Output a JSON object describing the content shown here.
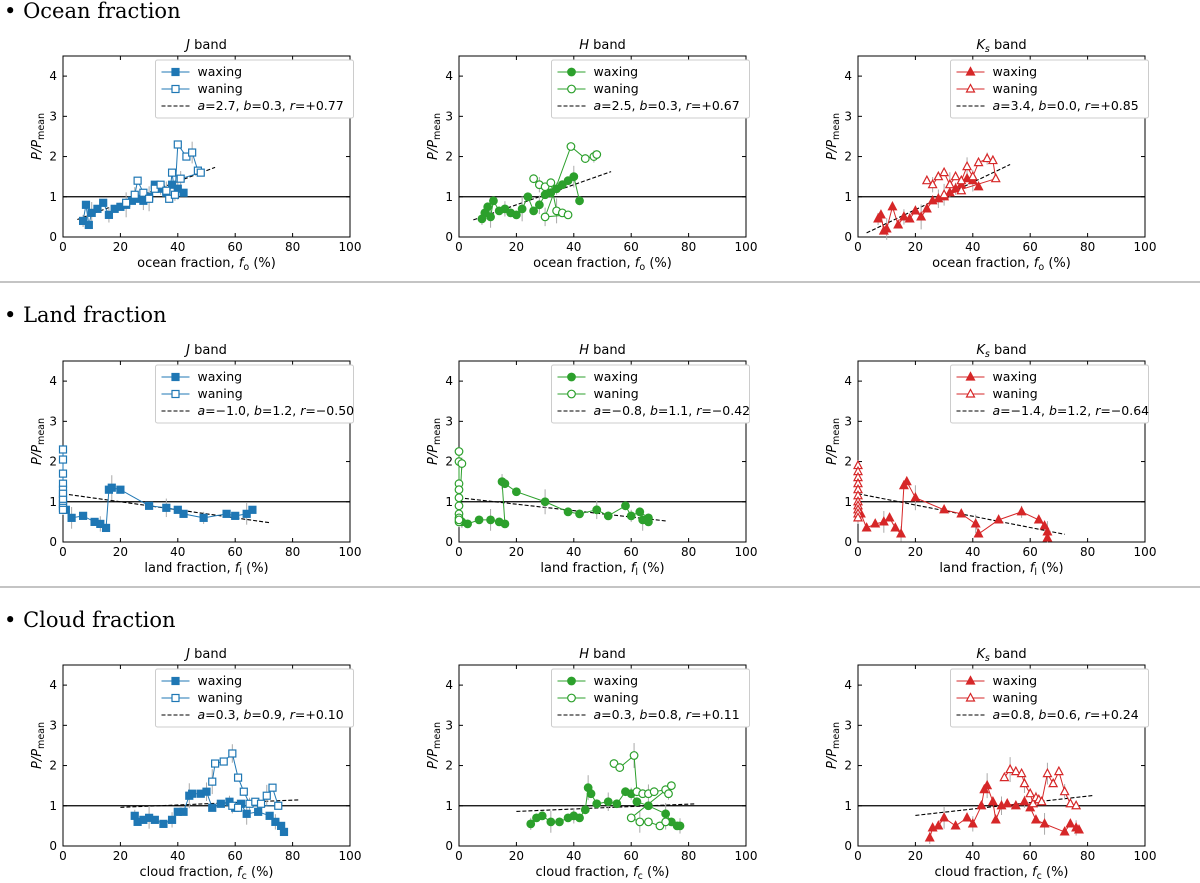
{
  "sections": [
    {
      "title": "Ocean fraction",
      "xlabel": "ocean fraction, f",
      "sub": "o",
      "key": "ocean"
    },
    {
      "title": "Land fraction",
      "xlabel": "land fraction, f",
      "sub": "l",
      "key": "land"
    },
    {
      "title": "Cloud fraction",
      "xlabel": "cloud fraction, f",
      "sub": "c",
      "key": "cloud"
    }
  ],
  "bands": [
    {
      "name": "J",
      "sub": "",
      "title_suffix": " band",
      "color": "#1f77b4",
      "marker": "square"
    },
    {
      "name": "H",
      "sub": "",
      "title_suffix": " band",
      "color": "#2ca02c",
      "marker": "circle"
    },
    {
      "name": "K",
      "sub": "s",
      "title_suffix": " band",
      "color": "#d62728",
      "marker": "triangle"
    }
  ],
  "legend_labels": {
    "waxing": "waxing",
    "waning": "waning"
  },
  "ylabel": "P/P",
  "ylabel_sub": "mean",
  "x_unit": " (%)",
  "x_ticks": [
    "0",
    "20",
    "40",
    "60",
    "80",
    "100"
  ],
  "y_ticks": [
    "0",
    "1",
    "2",
    "3",
    "4"
  ],
  "colors": {
    "J": "#1f77b4",
    "H": "#2ca02c",
    "Ks": "#d62728",
    "axis": "#000000",
    "errorbar": "#aaaaaa",
    "separator": "#888888"
  },
  "chart_data": [
    {
      "section": "ocean",
      "band": "J",
      "type": "scatter",
      "xlim": [
        0,
        100
      ],
      "ylim": [
        0,
        4.5
      ],
      "fit": {
        "a": "2.7",
        "b": "0.3",
        "r": "+0.77",
        "x_range": [
          5,
          53
        ]
      },
      "waxing": [
        [
          7,
          0.4
        ],
        [
          8,
          0.8
        ],
        [
          9,
          0.3
        ],
        [
          10,
          0.6
        ],
        [
          12,
          0.7
        ],
        [
          14,
          0.85
        ],
        [
          16,
          0.55
        ],
        [
          18,
          0.7
        ],
        [
          20,
          0.75
        ],
        [
          22,
          0.8
        ],
        [
          24,
          0.9
        ],
        [
          26,
          0.95
        ],
        [
          28,
          0.9
        ],
        [
          30,
          1.0
        ],
        [
          32,
          1.3
        ],
        [
          34,
          1.2
        ],
        [
          36,
          1.1
        ],
        [
          38,
          1.3
        ],
        [
          40,
          1.2
        ],
        [
          42,
          1.1
        ]
      ],
      "waning": [
        [
          22,
          0.85
        ],
        [
          25,
          1.05
        ],
        [
          26,
          1.4
        ],
        [
          28,
          1.1
        ],
        [
          30,
          0.95
        ],
        [
          32,
          1.2
        ],
        [
          34,
          1.3
        ],
        [
          36,
          1.15
        ],
        [
          37,
          0.95
        ],
        [
          38,
          1.6
        ],
        [
          39,
          1.05
        ],
        [
          40,
          2.3
        ],
        [
          43,
          2.0
        ],
        [
          45,
          2.1
        ],
        [
          47,
          1.65
        ],
        [
          48,
          1.6
        ],
        [
          41,
          1.45
        ]
      ]
    },
    {
      "section": "ocean",
      "band": "H",
      "type": "scatter",
      "xlim": [
        0,
        100
      ],
      "ylim": [
        0,
        4.5
      ],
      "fit": {
        "a": "2.5",
        "b": "0.3",
        "r": "+0.67",
        "x_range": [
          5,
          53
        ]
      },
      "waxing": [
        [
          8,
          0.45
        ],
        [
          9,
          0.6
        ],
        [
          10,
          0.75
        ],
        [
          11,
          0.5
        ],
        [
          12,
          0.9
        ],
        [
          14,
          0.65
        ],
        [
          16,
          0.7
        ],
        [
          18,
          0.6
        ],
        [
          20,
          0.55
        ],
        [
          22,
          0.7
        ],
        [
          24,
          1.0
        ],
        [
          26,
          0.65
        ],
        [
          28,
          0.8
        ],
        [
          30,
          1.05
        ],
        [
          32,
          1.1
        ],
        [
          34,
          1.2
        ],
        [
          36,
          1.3
        ],
        [
          38,
          1.4
        ],
        [
          40,
          1.5
        ],
        [
          42,
          0.9
        ]
      ],
      "waning": [
        [
          26,
          1.45
        ],
        [
          28,
          1.3
        ],
        [
          30,
          1.25
        ],
        [
          32,
          1.35
        ],
        [
          34,
          0.65
        ],
        [
          36,
          0.6
        ],
        [
          38,
          0.55
        ],
        [
          30,
          0.5
        ],
        [
          39,
          2.25
        ],
        [
          44,
          1.95
        ],
        [
          47,
          2.0
        ],
        [
          48,
          2.05
        ]
      ]
    },
    {
      "section": "ocean",
      "band": "Ks",
      "type": "scatter",
      "xlim": [
        0,
        100
      ],
      "ylim": [
        0,
        4.5
      ],
      "fit": {
        "a": "3.4",
        "b": "0.0",
        "r": "+0.85",
        "x_range": [
          3,
          53
        ]
      },
      "waxing": [
        [
          7,
          0.45
        ],
        [
          8,
          0.55
        ],
        [
          9,
          0.15
        ],
        [
          10,
          0.2
        ],
        [
          12,
          0.75
        ],
        [
          14,
          0.3
        ],
        [
          16,
          0.5
        ],
        [
          18,
          0.45
        ],
        [
          20,
          0.65
        ],
        [
          22,
          0.5
        ],
        [
          24,
          0.7
        ],
        [
          26,
          0.9
        ],
        [
          28,
          0.95
        ],
        [
          30,
          1.0
        ],
        [
          32,
          1.1
        ],
        [
          34,
          1.2
        ],
        [
          36,
          1.3
        ],
        [
          38,
          1.45
        ],
        [
          40,
          1.4
        ],
        [
          42,
          1.25
        ]
      ],
      "waning": [
        [
          24,
          1.4
        ],
        [
          26,
          1.3
        ],
        [
          28,
          1.5
        ],
        [
          30,
          1.6
        ],
        [
          32,
          1.3
        ],
        [
          34,
          1.5
        ],
        [
          36,
          1.4
        ],
        [
          38,
          1.75
        ],
        [
          40,
          1.5
        ],
        [
          42,
          1.85
        ],
        [
          45,
          1.95
        ],
        [
          47,
          1.9
        ],
        [
          48,
          1.45
        ],
        [
          30,
          1.05
        ],
        [
          36,
          1.15
        ]
      ]
    },
    {
      "section": "land",
      "band": "J",
      "type": "scatter",
      "xlim": [
        0,
        100
      ],
      "ylim": [
        0,
        4.5
      ],
      "fit": {
        "a": "−1.0",
        "b": "1.2",
        "r": "−0.50",
        "x_range": [
          0,
          72
        ]
      },
      "waxing": [
        [
          0,
          1.1
        ],
        [
          0,
          0.95
        ],
        [
          1,
          0.8
        ],
        [
          3,
          0.6
        ],
        [
          7,
          0.65
        ],
        [
          11,
          0.5
        ],
        [
          13,
          0.45
        ],
        [
          15,
          0.35
        ],
        [
          16,
          1.3
        ],
        [
          17,
          1.35
        ],
        [
          20,
          1.3
        ],
        [
          30,
          0.9
        ],
        [
          36,
          0.85
        ],
        [
          40,
          0.8
        ],
        [
          42,
          0.7
        ],
        [
          49,
          0.6
        ],
        [
          57,
          0.7
        ],
        [
          60,
          0.65
        ],
        [
          64,
          0.7
        ],
        [
          66,
          0.8
        ]
      ],
      "waning": [
        [
          0,
          2.3
        ],
        [
          0,
          2.05
        ],
        [
          0,
          1.7
        ],
        [
          0,
          1.45
        ],
        [
          0,
          1.3
        ],
        [
          0,
          1.2
        ],
        [
          0,
          1.05
        ],
        [
          0,
          0.9
        ],
        [
          0,
          0.85
        ],
        [
          0,
          0.8
        ]
      ]
    },
    {
      "section": "land",
      "band": "H",
      "type": "scatter",
      "xlim": [
        0,
        100
      ],
      "ylim": [
        0,
        4.5
      ],
      "fit": {
        "a": "−0.8",
        "b": "1.1",
        "r": "−0.42",
        "x_range": [
          0,
          72
        ]
      },
      "waxing": [
        [
          1,
          0.5
        ],
        [
          3,
          0.45
        ],
        [
          7,
          0.55
        ],
        [
          11,
          0.55
        ],
        [
          14,
          0.5
        ],
        [
          16,
          0.45
        ],
        [
          15,
          1.5
        ],
        [
          16,
          1.45
        ],
        [
          20,
          1.25
        ],
        [
          30,
          1.0
        ],
        [
          38,
          0.75
        ],
        [
          42,
          0.7
        ],
        [
          48,
          0.8
        ],
        [
          52,
          0.65
        ],
        [
          58,
          0.9
        ],
        [
          60,
          0.65
        ],
        [
          63,
          0.75
        ],
        [
          66,
          0.6
        ],
        [
          64,
          0.55
        ],
        [
          66,
          0.5
        ]
      ],
      "waning": [
        [
          0,
          2.25
        ],
        [
          0,
          2.0
        ],
        [
          0,
          1.45
        ],
        [
          0,
          1.3
        ],
        [
          0,
          1.1
        ],
        [
          0,
          0.9
        ],
        [
          0,
          0.7
        ],
        [
          0,
          0.6
        ],
        [
          0,
          0.5
        ],
        [
          0,
          0.55
        ],
        [
          1,
          1.95
        ]
      ]
    },
    {
      "section": "land",
      "band": "Ks",
      "type": "scatter",
      "xlim": [
        0,
        100
      ],
      "ylim": [
        0,
        4.5
      ],
      "fit": {
        "a": "−1.4",
        "b": "1.2",
        "r": "−0.64",
        "x_range": [
          0,
          72
        ]
      },
      "waxing": [
        [
          1,
          0.7
        ],
        [
          3,
          0.35
        ],
        [
          6,
          0.45
        ],
        [
          9,
          0.5
        ],
        [
          11,
          0.6
        ],
        [
          13,
          0.35
        ],
        [
          15,
          0.2
        ],
        [
          16,
          1.4
        ],
        [
          17,
          1.5
        ],
        [
          20,
          1.1
        ],
        [
          30,
          0.8
        ],
        [
          36,
          0.7
        ],
        [
          41,
          0.45
        ],
        [
          42,
          0.2
        ],
        [
          49,
          0.55
        ],
        [
          57,
          0.75
        ],
        [
          63,
          0.55
        ],
        [
          65,
          0.4
        ],
        [
          66,
          0.25
        ],
        [
          66,
          0.1
        ]
      ],
      "waning": [
        [
          0,
          1.9
        ],
        [
          0,
          1.75
        ],
        [
          0,
          1.6
        ],
        [
          0,
          1.45
        ],
        [
          0,
          1.3
        ],
        [
          0,
          1.15
        ],
        [
          0,
          1.0
        ],
        [
          0,
          0.9
        ],
        [
          0,
          0.8
        ],
        [
          0,
          0.7
        ],
        [
          0,
          0.6
        ]
      ]
    },
    {
      "section": "cloud",
      "band": "J",
      "type": "scatter",
      "xlim": [
        0,
        100
      ],
      "ylim": [
        0,
        4.5
      ],
      "fit": {
        "a": "0.3",
        "b": "0.9",
        "r": "+0.10",
        "x_range": [
          20,
          82
        ]
      },
      "waxing": [
        [
          25,
          0.75
        ],
        [
          26,
          0.6
        ],
        [
          28,
          0.65
        ],
        [
          30,
          0.7
        ],
        [
          32,
          0.65
        ],
        [
          35,
          0.55
        ],
        [
          38,
          0.65
        ],
        [
          40,
          0.85
        ],
        [
          42,
          0.85
        ],
        [
          44,
          1.25
        ],
        [
          45,
          1.3
        ],
        [
          48,
          1.3
        ],
        [
          50,
          1.35
        ],
        [
          52,
          0.95
        ],
        [
          55,
          1.05
        ],
        [
          58,
          1.1
        ],
        [
          60,
          0.95
        ],
        [
          62,
          1.05
        ],
        [
          64,
          0.8
        ],
        [
          68,
          0.85
        ],
        [
          72,
          0.75
        ],
        [
          74,
          0.6
        ],
        [
          76,
          0.5
        ],
        [
          77,
          0.35
        ]
      ],
      "waning": [
        [
          52,
          1.6
        ],
        [
          53,
          2.05
        ],
        [
          56,
          2.1
        ],
        [
          59,
          2.3
        ],
        [
          61,
          1.7
        ],
        [
          63,
          1.35
        ],
        [
          65,
          1.05
        ],
        [
          67,
          1.1
        ],
        [
          69,
          1.05
        ],
        [
          71,
          1.25
        ],
        [
          73,
          1.45
        ],
        [
          75,
          1.0
        ],
        [
          59,
          1.0
        ],
        [
          61,
          0.95
        ]
      ]
    },
    {
      "section": "cloud",
      "band": "H",
      "type": "scatter",
      "xlim": [
        0,
        100
      ],
      "ylim": [
        0,
        4.5
      ],
      "fit": {
        "a": "0.3",
        "b": "0.8",
        "r": "+0.11",
        "x_range": [
          20,
          82
        ]
      },
      "waxing": [
        [
          25,
          0.55
        ],
        [
          27,
          0.7
        ],
        [
          29,
          0.75
        ],
        [
          32,
          0.6
        ],
        [
          35,
          0.6
        ],
        [
          38,
          0.7
        ],
        [
          40,
          0.75
        ],
        [
          42,
          0.7
        ],
        [
          44,
          0.9
        ],
        [
          45,
          1.45
        ],
        [
          46,
          1.3
        ],
        [
          48,
          1.05
        ],
        [
          52,
          1.1
        ],
        [
          55,
          1.05
        ],
        [
          58,
          1.35
        ],
        [
          60,
          1.3
        ],
        [
          62,
          1.1
        ],
        [
          66,
          1.0
        ],
        [
          72,
          0.8
        ],
        [
          74,
          0.6
        ],
        [
          76,
          0.5
        ],
        [
          77,
          0.5
        ]
      ],
      "waning": [
        [
          54,
          2.05
        ],
        [
          56,
          1.95
        ],
        [
          61,
          2.25
        ],
        [
          62,
          1.35
        ],
        [
          64,
          1.3
        ],
        [
          66,
          1.3
        ],
        [
          68,
          1.35
        ],
        [
          72,
          1.4
        ],
        [
          73,
          1.3
        ],
        [
          74,
          1.5
        ],
        [
          60,
          0.7
        ],
        [
          63,
          0.6
        ],
        [
          66,
          0.6
        ],
        [
          70,
          0.5
        ],
        [
          72,
          0.6
        ]
      ]
    },
    {
      "section": "cloud",
      "band": "Ks",
      "type": "scatter",
      "xlim": [
        0,
        100
      ],
      "ylim": [
        0,
        4.5
      ],
      "fit": {
        "a": "0.8",
        "b": "0.6",
        "r": "+0.24",
        "x_range": [
          20,
          82
        ]
      },
      "waxing": [
        [
          25,
          0.2
        ],
        [
          26,
          0.45
        ],
        [
          28,
          0.5
        ],
        [
          30,
          0.7
        ],
        [
          34,
          0.5
        ],
        [
          38,
          0.7
        ],
        [
          40,
          0.55
        ],
        [
          43,
          1.0
        ],
        [
          44,
          1.4
        ],
        [
          45,
          1.5
        ],
        [
          47,
          1.1
        ],
        [
          48,
          0.65
        ],
        [
          50,
          1.0
        ],
        [
          52,
          1.05
        ],
        [
          55,
          1.0
        ],
        [
          58,
          1.1
        ],
        [
          60,
          0.95
        ],
        [
          62,
          0.65
        ],
        [
          65,
          0.55
        ],
        [
          72,
          0.35
        ],
        [
          74,
          0.55
        ],
        [
          76,
          0.45
        ],
        [
          77,
          0.4
        ]
      ],
      "waning": [
        [
          51,
          1.7
        ],
        [
          53,
          1.9
        ],
        [
          55,
          1.85
        ],
        [
          57,
          1.8
        ],
        [
          58,
          1.55
        ],
        [
          60,
          1.3
        ],
        [
          61,
          1.05
        ],
        [
          62,
          1.2
        ],
        [
          63,
          1.15
        ],
        [
          64,
          1.1
        ],
        [
          66,
          1.8
        ],
        [
          68,
          1.55
        ],
        [
          70,
          1.85
        ],
        [
          72,
          1.35
        ],
        [
          74,
          1.05
        ],
        [
          76,
          1.0
        ]
      ]
    }
  ]
}
